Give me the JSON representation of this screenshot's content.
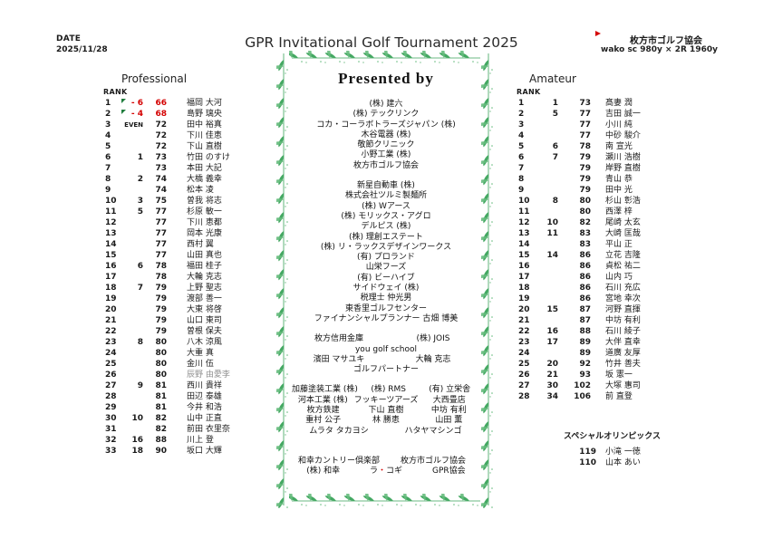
{
  "colors": {
    "accent_red": "#d40000",
    "vine_green": "#3aa35a",
    "vine_green_light": "#66bb7d",
    "marker_green": "#1e7c3c",
    "muted_gray": "#8f8f8f"
  },
  "header": {
    "date_label": "DATE",
    "date_value": "2025/11/28",
    "title": "GPR Invitational Golf Tournament 2025",
    "org_name": "枚方市ゴルフ協会",
    "course_info": "wako sc  980y × 2R  1960y"
  },
  "professional": {
    "heading": "Professional",
    "rank_label": "RANK",
    "rows": [
      {
        "rank": "1",
        "diff": "- 6",
        "score": "66",
        "name": "福岡 大河",
        "red": true,
        "marker": true
      },
      {
        "rank": "2",
        "diff": "- 4",
        "score": "68",
        "name": "島野 璃央",
        "red": true,
        "marker": true
      },
      {
        "rank": "3",
        "diff": "EVEN",
        "score": "72",
        "name": "田中 裕真",
        "even": true
      },
      {
        "rank": "4",
        "diff": "",
        "score": "72",
        "name": "下川 佳恵"
      },
      {
        "rank": "5",
        "diff": "",
        "score": "72",
        "name": "下山 直樹"
      },
      {
        "rank": "6",
        "diff": "1",
        "score": "73",
        "name": "竹田 のすけ"
      },
      {
        "rank": "7",
        "diff": "",
        "score": "73",
        "name": "本田 大記"
      },
      {
        "rank": "8",
        "diff": "2",
        "score": "74",
        "name": "大橋 義幸"
      },
      {
        "rank": "9",
        "diff": "",
        "score": "74",
        "name": "松本 凌"
      },
      {
        "rank": "10",
        "diff": "3",
        "score": "75",
        "name": "曽我 将志"
      },
      {
        "rank": "11",
        "diff": "5",
        "score": "77",
        "name": "杉原 敏一"
      },
      {
        "rank": "12",
        "diff": "",
        "score": "77",
        "name": "下川 恵都"
      },
      {
        "rank": "13",
        "diff": "",
        "score": "77",
        "name": "岡本 光康"
      },
      {
        "rank": "14",
        "diff": "",
        "score": "77",
        "name": "西村 翼"
      },
      {
        "rank": "15",
        "diff": "",
        "score": "77",
        "name": "山田 真也"
      },
      {
        "rank": "16",
        "diff": "6",
        "score": "78",
        "name": "福田 桂子"
      },
      {
        "rank": "17",
        "diff": "",
        "score": "78",
        "name": "大輪 克志"
      },
      {
        "rank": "18",
        "diff": "7",
        "score": "79",
        "name": "上野 聖志"
      },
      {
        "rank": "19",
        "diff": "",
        "score": "79",
        "name": "渡部 善一"
      },
      {
        "rank": "20",
        "diff": "",
        "score": "79",
        "name": "大東 将啓"
      },
      {
        "rank": "21",
        "diff": "",
        "score": "79",
        "name": "山口 東司"
      },
      {
        "rank": "22",
        "diff": "",
        "score": "79",
        "name": "曽根 保夫"
      },
      {
        "rank": "23",
        "diff": "8",
        "score": "80",
        "name": "八木 涼風"
      },
      {
        "rank": "24",
        "diff": "",
        "score": "80",
        "name": "大重 真"
      },
      {
        "rank": "25",
        "diff": "",
        "score": "80",
        "name": "金川 伍"
      },
      {
        "rank": "26",
        "diff": "",
        "score": "80",
        "name": "辰野 由愛李",
        "muted": true
      },
      {
        "rank": "27",
        "diff": "9",
        "score": "81",
        "name": "西川 貴祥"
      },
      {
        "rank": "28",
        "diff": "",
        "score": "81",
        "name": "田辺 泰雄"
      },
      {
        "rank": "29",
        "diff": "",
        "score": "81",
        "name": "今井 和浩"
      },
      {
        "rank": "30",
        "diff": "10",
        "score": "82",
        "name": "山中 正直"
      },
      {
        "rank": "31",
        "diff": "",
        "score": "82",
        "name": "前田 衣里奈"
      },
      {
        "rank": "32",
        "diff": "16",
        "score": "88",
        "name": "川上 登"
      },
      {
        "rank": "33",
        "diff": "18",
        "score": "90",
        "name": "坂口 大輝"
      }
    ]
  },
  "amateur": {
    "heading": "Amateur",
    "rank_label": "RANK",
    "rows": [
      {
        "rank": "1",
        "diff": "1",
        "score": "73",
        "name": "髙妻 潤"
      },
      {
        "rank": "2",
        "diff": "5",
        "score": "77",
        "name": "吉田 誠一"
      },
      {
        "rank": "3",
        "diff": "",
        "score": "77",
        "name": "小川 純"
      },
      {
        "rank": "4",
        "diff": "",
        "score": "77",
        "name": "中砂 駿介"
      },
      {
        "rank": "5",
        "diff": "6",
        "score": "78",
        "name": "南 宣光"
      },
      {
        "rank": "6",
        "diff": "7",
        "score": "79",
        "name": "瀬川 浩樹"
      },
      {
        "rank": "7",
        "diff": "",
        "score": "79",
        "name": "岸野 直樹"
      },
      {
        "rank": "8",
        "diff": "",
        "score": "79",
        "name": "青山 恭"
      },
      {
        "rank": "9",
        "diff": "",
        "score": "79",
        "name": "田中 光"
      },
      {
        "rank": "10",
        "diff": "8",
        "score": "80",
        "name": "杉山 彰浩"
      },
      {
        "rank": "11",
        "diff": "",
        "score": "80",
        "name": "西澤 梓"
      },
      {
        "rank": "12",
        "diff": "10",
        "score": "82",
        "name": "尾崎 太玄"
      },
      {
        "rank": "13",
        "diff": "11",
        "score": "83",
        "name": "大崎 匡哉"
      },
      {
        "rank": "14",
        "diff": "",
        "score": "83",
        "name": "平山 正"
      },
      {
        "rank": "15",
        "diff": "14",
        "score": "86",
        "name": "立花 吉隆"
      },
      {
        "rank": "16",
        "diff": "",
        "score": "86",
        "name": "貞松 祐二"
      },
      {
        "rank": "17",
        "diff": "",
        "score": "86",
        "name": "山内 巧"
      },
      {
        "rank": "18",
        "diff": "",
        "score": "86",
        "name": "石川 充広"
      },
      {
        "rank": "19",
        "diff": "",
        "score": "86",
        "name": "宮地 幸次"
      },
      {
        "rank": "20",
        "diff": "15",
        "score": "87",
        "name": "河野 直揮"
      },
      {
        "rank": "21",
        "diff": "",
        "score": "87",
        "name": "中坊 有利"
      },
      {
        "rank": "22",
        "diff": "16",
        "score": "88",
        "name": "石川 綾子"
      },
      {
        "rank": "23",
        "diff": "17",
        "score": "89",
        "name": "大伴 直幸"
      },
      {
        "rank": "24",
        "diff": "",
        "score": "89",
        "name": "道廣 友厚"
      },
      {
        "rank": "25",
        "diff": "20",
        "score": "92",
        "name": "竹井 善夫"
      },
      {
        "rank": "26",
        "diff": "21",
        "score": "93",
        "name": "坂 憲一"
      },
      {
        "rank": "27",
        "diff": "30",
        "score": "102",
        "name": "大塚 惠司"
      },
      {
        "rank": "28",
        "diff": "34",
        "score": "106",
        "name": "前 直登"
      }
    ]
  },
  "special": {
    "heading": "スペシャルオリンピックス",
    "rows": [
      {
        "score": "119",
        "name": "小滝 一徳"
      },
      {
        "score": "110",
        "name": "山本 あい"
      }
    ]
  },
  "presented": {
    "heading": "Presented by",
    "groups": [
      {
        "lines": [
          [
            {
              "t": "(株) 建六"
            }
          ],
          [
            {
              "t": "(株) テックリンク"
            }
          ],
          [
            {
              "t": "コカ・コーラボトラーズジャパン (株)"
            }
          ],
          [
            {
              "t": "木谷電器 (株)"
            }
          ],
          [
            {
              "t": "敬節クリニック"
            }
          ],
          [
            {
              "t": "小野工業 (株)"
            }
          ],
          [
            {
              "t": "枚方市ゴルフ協会"
            }
          ]
        ]
      },
      {
        "lines": [
          [
            {
              "t": "新星自動車 (株)"
            }
          ],
          [
            {
              "t": "株式会社ツルミ製麺所"
            }
          ],
          [
            {
              "t": "(株) Wアース"
            }
          ],
          [
            {
              "t": "(株) モリックス・アグロ"
            }
          ],
          [
            {
              "t": "デルピス (株)"
            }
          ],
          [
            {
              "t": "(株) 理創エステート"
            }
          ],
          [
            {
              "t": "(株) リ・ラックスデザインワークス"
            }
          ],
          [
            {
              "t": "(有) プロランド"
            }
          ],
          [
            {
              "t": "山栄フーズ"
            }
          ],
          [
            {
              "t": "(有) ビーハイブ"
            }
          ],
          [
            {
              "t": "サイドウェイ (株)"
            }
          ],
          [
            {
              "t": "税理士 仲光男"
            }
          ],
          [
            {
              "t": "東香里ゴルフセンター"
            }
          ],
          [
            {
              "t": "ファイナンシャルプランナー 古畑 博美"
            }
          ]
        ]
      },
      {
        "lines": [
          [
            {
              "t": "枚方信用金庫"
            },
            {
              "t": "(株) JOIS"
            }
          ],
          [
            {
              "t": "you golf school"
            }
          ],
          [
            {
              "t": "濱田 マサユキ"
            },
            {
              "t": "大輪 克志"
            }
          ],
          [
            {
              "t": "ゴルフパートナー"
            }
          ]
        ]
      },
      {
        "lines": [
          [
            {
              "t": "加藤塗装工業 (株)"
            },
            {
              "t": "(株) RMS"
            },
            {
              "t": "(有) 立栄舎"
            }
          ],
          [
            {
              "t": "河本工業 (株)"
            },
            {
              "t": "フッキーツアーズ"
            },
            {
              "t": "大西畳店"
            }
          ],
          [
            {
              "t": "枚方鉄建"
            },
            {
              "t": "下山 直樹"
            },
            {
              "t": "中坊 有利"
            }
          ],
          [
            {
              "t": "重村 公子"
            },
            {
              "t": "林 勝恵"
            },
            {
              "t": "山田 薫"
            }
          ],
          [
            {
              "t": "ムラタ タカヨシ"
            },
            {
              "t": "ハタヤマシンゴ"
            }
          ]
        ]
      },
      {
        "gap_large": true,
        "lines": [
          [
            {
              "t": "和幸カントリー倶楽部"
            },
            {
              "t": "枚方市ゴルフ協会"
            }
          ],
          [
            {
              "t": "(株) 和幸"
            },
            {
              "t": "ラ・コギ",
              "red_dot": "・"
            },
            {
              "t": "GPR協会"
            }
          ]
        ]
      }
    ]
  }
}
